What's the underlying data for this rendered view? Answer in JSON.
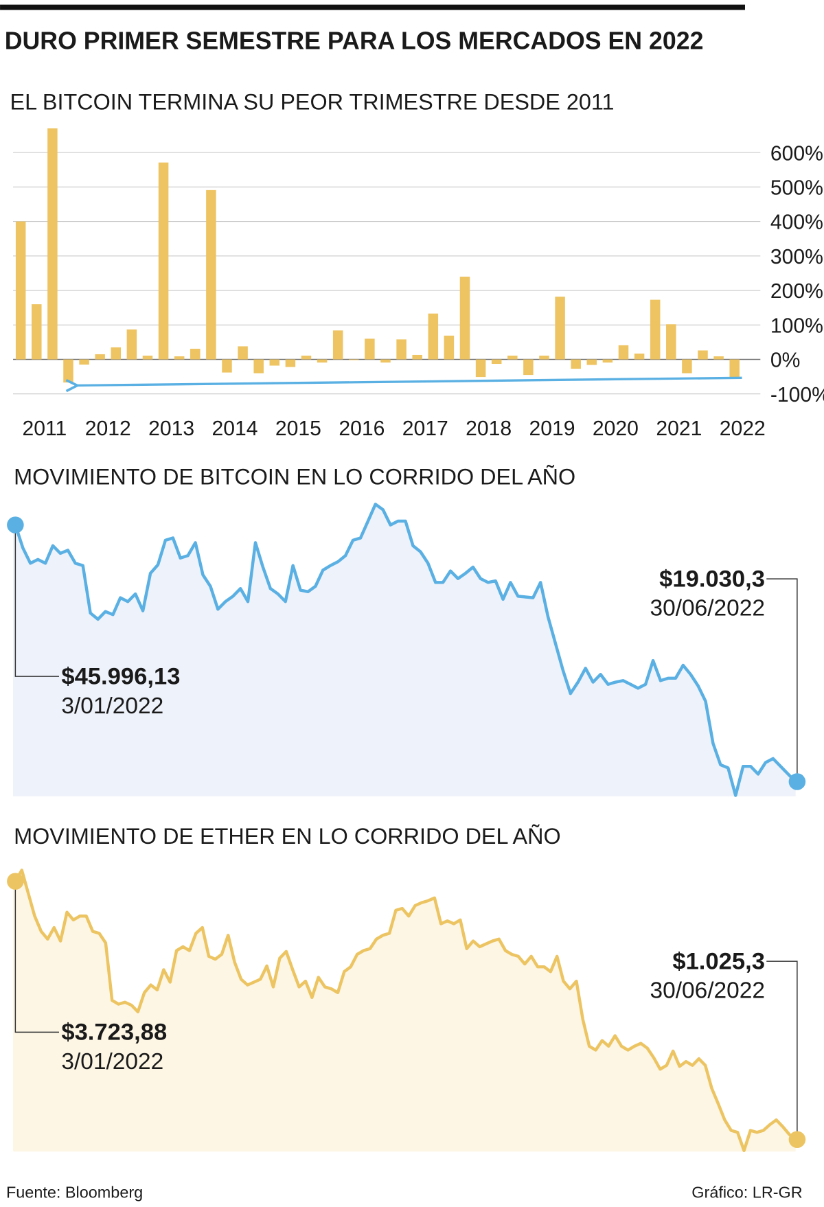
{
  "title": "DURO PRIMER SEMESTRE PARA LOS MERCADOS EN 2022",
  "source": "Fuente: Bloomberg",
  "credit": "Gráfico: LR-GR",
  "chart_data": [
    {
      "type": "bar",
      "title": "EL BITCOIN TERMINA SU PEOR TRIMESTRE DESDE 2011",
      "x": [
        2011.125,
        2011.375,
        2011.625,
        2011.875,
        2012.125,
        2012.375,
        2012.625,
        2012.875,
        2013.125,
        2013.375,
        2013.625,
        2013.875,
        2014.125,
        2014.375,
        2014.625,
        2014.875,
        2015.125,
        2015.375,
        2015.625,
        2015.875,
        2016.125,
        2016.375,
        2016.625,
        2016.875,
        2017.125,
        2017.375,
        2017.625,
        2017.875,
        2018.125,
        2018.375,
        2018.625,
        2018.875,
        2019.125,
        2019.375,
        2019.625,
        2019.875,
        2020.125,
        2020.375,
        2020.625,
        2020.875,
        2021.125,
        2021.375,
        2021.625,
        2021.875,
        2022.125,
        2022.375
      ],
      "values": [
        400,
        160,
        670,
        -67,
        -15,
        15,
        35,
        87,
        11,
        571,
        9,
        31,
        491,
        -38,
        38,
        -40,
        -18,
        -22,
        11,
        -9,
        84,
        -2,
        60,
        -9,
        58,
        13,
        133,
        69,
        240,
        -51,
        -13,
        11,
        -45,
        11,
        182,
        -27,
        -16,
        -9,
        41,
        17,
        173,
        102,
        -40,
        26,
        9,
        -56
      ],
      "color": "#eec462",
      "xlim": [
        2011,
        2022.625
      ],
      "xticks": [
        {
          "value": 2011.5,
          "label": "2011"
        },
        {
          "value": 2012.5,
          "label": "2012"
        },
        {
          "value": 2013.5,
          "label": "2013"
        },
        {
          "value": 2014.5,
          "label": "2014"
        },
        {
          "value": 2015.5,
          "label": "2015"
        },
        {
          "value": 2016.5,
          "label": "2016"
        },
        {
          "value": 2017.5,
          "label": "2017"
        },
        {
          "value": 2018.5,
          "label": "2018"
        },
        {
          "value": 2019.5,
          "label": "2019"
        },
        {
          "value": 2020.5,
          "label": "2020"
        },
        {
          "value": 2021.5,
          "label": "2021"
        },
        {
          "value": 2022.5,
          "label": "2022"
        }
      ],
      "ylim": [
        -100,
        680
      ],
      "yticks": [
        {
          "value": 600,
          "label": "600%"
        },
        {
          "value": 500,
          "label": "500%"
        },
        {
          "value": 400,
          "label": "400%"
        },
        {
          "value": 300,
          "label": "300%"
        },
        {
          "value": 200,
          "label": "200%"
        },
        {
          "value": 100,
          "label": "100%"
        },
        {
          "value": 0,
          "label": "0%"
        },
        {
          "value": -100,
          "label": "-100%"
        }
      ],
      "grid": true
    },
    {
      "type": "line",
      "title": "MOVIMIENTO DE BITCOIN EN LO CORRIDO DEL AÑO",
      "values": [
        45996.13,
        43580,
        41970,
        42370,
        41970,
        43820,
        43020,
        43340,
        41970,
        41730,
        36740,
        36100,
        36900,
        36580,
        38350,
        37950,
        38750,
        36980,
        40920,
        41810,
        44390,
        44630,
        42530,
        42780,
        44140,
        40760,
        39550,
        37140,
        37950,
        38510,
        39320,
        37950,
        44140,
        41570,
        39320,
        38750,
        37950,
        41730,
        39150,
        38990,
        39550,
        41250,
        41730,
        42130,
        42780,
        44390,
        44630,
        46400,
        48170,
        47610,
        46000,
        46400,
        46400,
        43820,
        43180,
        41970,
        39960,
        39960,
        41170,
        40360,
        40920,
        41570,
        40360,
        39960,
        40120,
        38190,
        39960,
        38510,
        38430,
        38350,
        39960,
        36340,
        33520,
        30700,
        28290,
        29490,
        30940,
        29490,
        30300,
        29250,
        29490,
        29650,
        29250,
        28850,
        29250,
        31750,
        29650,
        29900,
        29900,
        31260,
        30300,
        29090,
        27480,
        23050,
        20800,
        20480,
        17580,
        20640,
        20640,
        19830,
        21040,
        21450,
        20640,
        19830,
        19030.3
      ],
      "color": "#5ab0e3",
      "fill_color": "#eef2fa",
      "ylim": [
        17500,
        49500
      ],
      "annotations": [
        {
          "label": "$45.996,13",
          "date": "3/01/2022"
        },
        {
          "label": "$19.030,3",
          "date": "30/06/2022"
        }
      ]
    },
    {
      "type": "line",
      "title": "MOVIMIENTO DE ETHER EN LO CORRIDO DEL AÑO",
      "values": [
        3723.88,
        3840,
        3600,
        3360,
        3200,
        3120,
        3240,
        3100,
        3400,
        3320,
        3360,
        3360,
        3200,
        3180,
        3080,
        2480,
        2440,
        2460,
        2430,
        2360,
        2560,
        2640,
        2590,
        2800,
        2670,
        3000,
        3040,
        3000,
        3180,
        3240,
        2940,
        2910,
        2960,
        3160,
        2880,
        2700,
        2640,
        2670,
        2700,
        2840,
        2620,
        2920,
        2990,
        2800,
        2620,
        2680,
        2510,
        2720,
        2620,
        2600,
        2560,
        2780,
        2830,
        2960,
        3000,
        3020,
        3120,
        3160,
        3180,
        3420,
        3440,
        3360,
        3470,
        3500,
        3520,
        3550,
        3280,
        3310,
        3280,
        3320,
        3020,
        3100,
        3040,
        3070,
        3100,
        3120,
        3000,
        2960,
        2940,
        2860,
        2940,
        2830,
        2830,
        2780,
        2940,
        2680,
        2600,
        2680,
        2280,
        2000,
        1960,
        2060,
        2000,
        2110,
        2000,
        1960,
        2000,
        2030,
        1980,
        1880,
        1760,
        1800,
        1950,
        1790,
        1840,
        1800,
        1870,
        1800,
        1560,
        1400,
        1230,
        1120,
        1100,
        910,
        1120,
        1100,
        1120,
        1180,
        1230,
        1160,
        1080,
        1025.3
      ],
      "color": "#ecc462",
      "fill_color": "#fdf6e4",
      "ylim": [
        900,
        3900
      ],
      "annotations": [
        {
          "label": "$3.723,88",
          "date": "3/01/2022"
        },
        {
          "label": "$1.025,3",
          "date": "30/06/2022"
        }
      ]
    }
  ]
}
